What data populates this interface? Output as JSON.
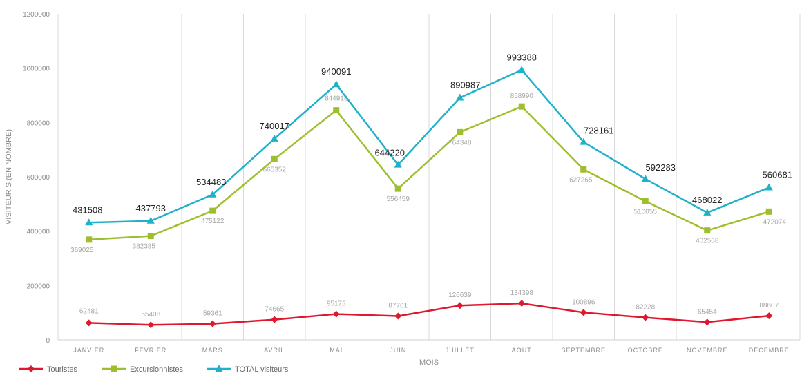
{
  "chart_data": {
    "type": "line",
    "title": "",
    "xlabel": "MOIS",
    "ylabel": "VISITEUR S (EN NOMBRE)",
    "ylim": [
      0,
      1200000
    ],
    "yticks": [
      0,
      200000,
      400000,
      600000,
      800000,
      1000000,
      1200000
    ],
    "ytick_labels": [
      "0",
      "200000",
      "400000",
      "600000",
      "800000",
      "1000000",
      "1200000"
    ],
    "grid": "vertical",
    "legend_position": "bottom-left",
    "categories": [
      "JANVIER",
      "FEVRIER",
      "MARS",
      "AVRIL",
      "MAI",
      "JUIN",
      "JUILLET",
      "AOUT",
      "SEPTEMBRE",
      "OCTOBRE",
      "NOVEMBRE",
      "DECEMBRE"
    ],
    "series": [
      {
        "name": "Touristes",
        "color": "#e0182e",
        "marker": "diamond",
        "values": [
          62481,
          55408,
          59361,
          74665,
          95173,
          87761,
          126639,
          134398,
          100896,
          82228,
          65454,
          88607
        ],
        "labels": [
          "62481",
          "55408",
          "59361",
          "74665",
          "95173",
          "87761",
          "126639",
          "134398",
          "100896",
          "82228",
          "65454",
          "88607"
        ]
      },
      {
        "name": "Excursionnistes",
        "color": "#9dbf2e",
        "marker": "square",
        "values": [
          369025,
          382385,
          475122,
          665352,
          844918,
          556459,
          764348,
          858990,
          627265,
          510055,
          402568,
          472074
        ],
        "labels": [
          "369025",
          "382385",
          "475122",
          "665352",
          "844918",
          "556459",
          "764348",
          "858990",
          "627265",
          "510055",
          "402568",
          "472074"
        ]
      },
      {
        "name": "TOTAL visiteurs",
        "color": "#1fb1c9",
        "marker": "triangle",
        "values": [
          431508,
          437793,
          534483,
          740017,
          940091,
          644220,
          890987,
          993388,
          728161,
          592283,
          468022,
          560681
        ],
        "labels": [
          "431508",
          "437793",
          "534483",
          "740017",
          "940091",
          "644220",
          "890987",
          "993388",
          "728161",
          "592283",
          "468022",
          "560681"
        ]
      }
    ]
  }
}
